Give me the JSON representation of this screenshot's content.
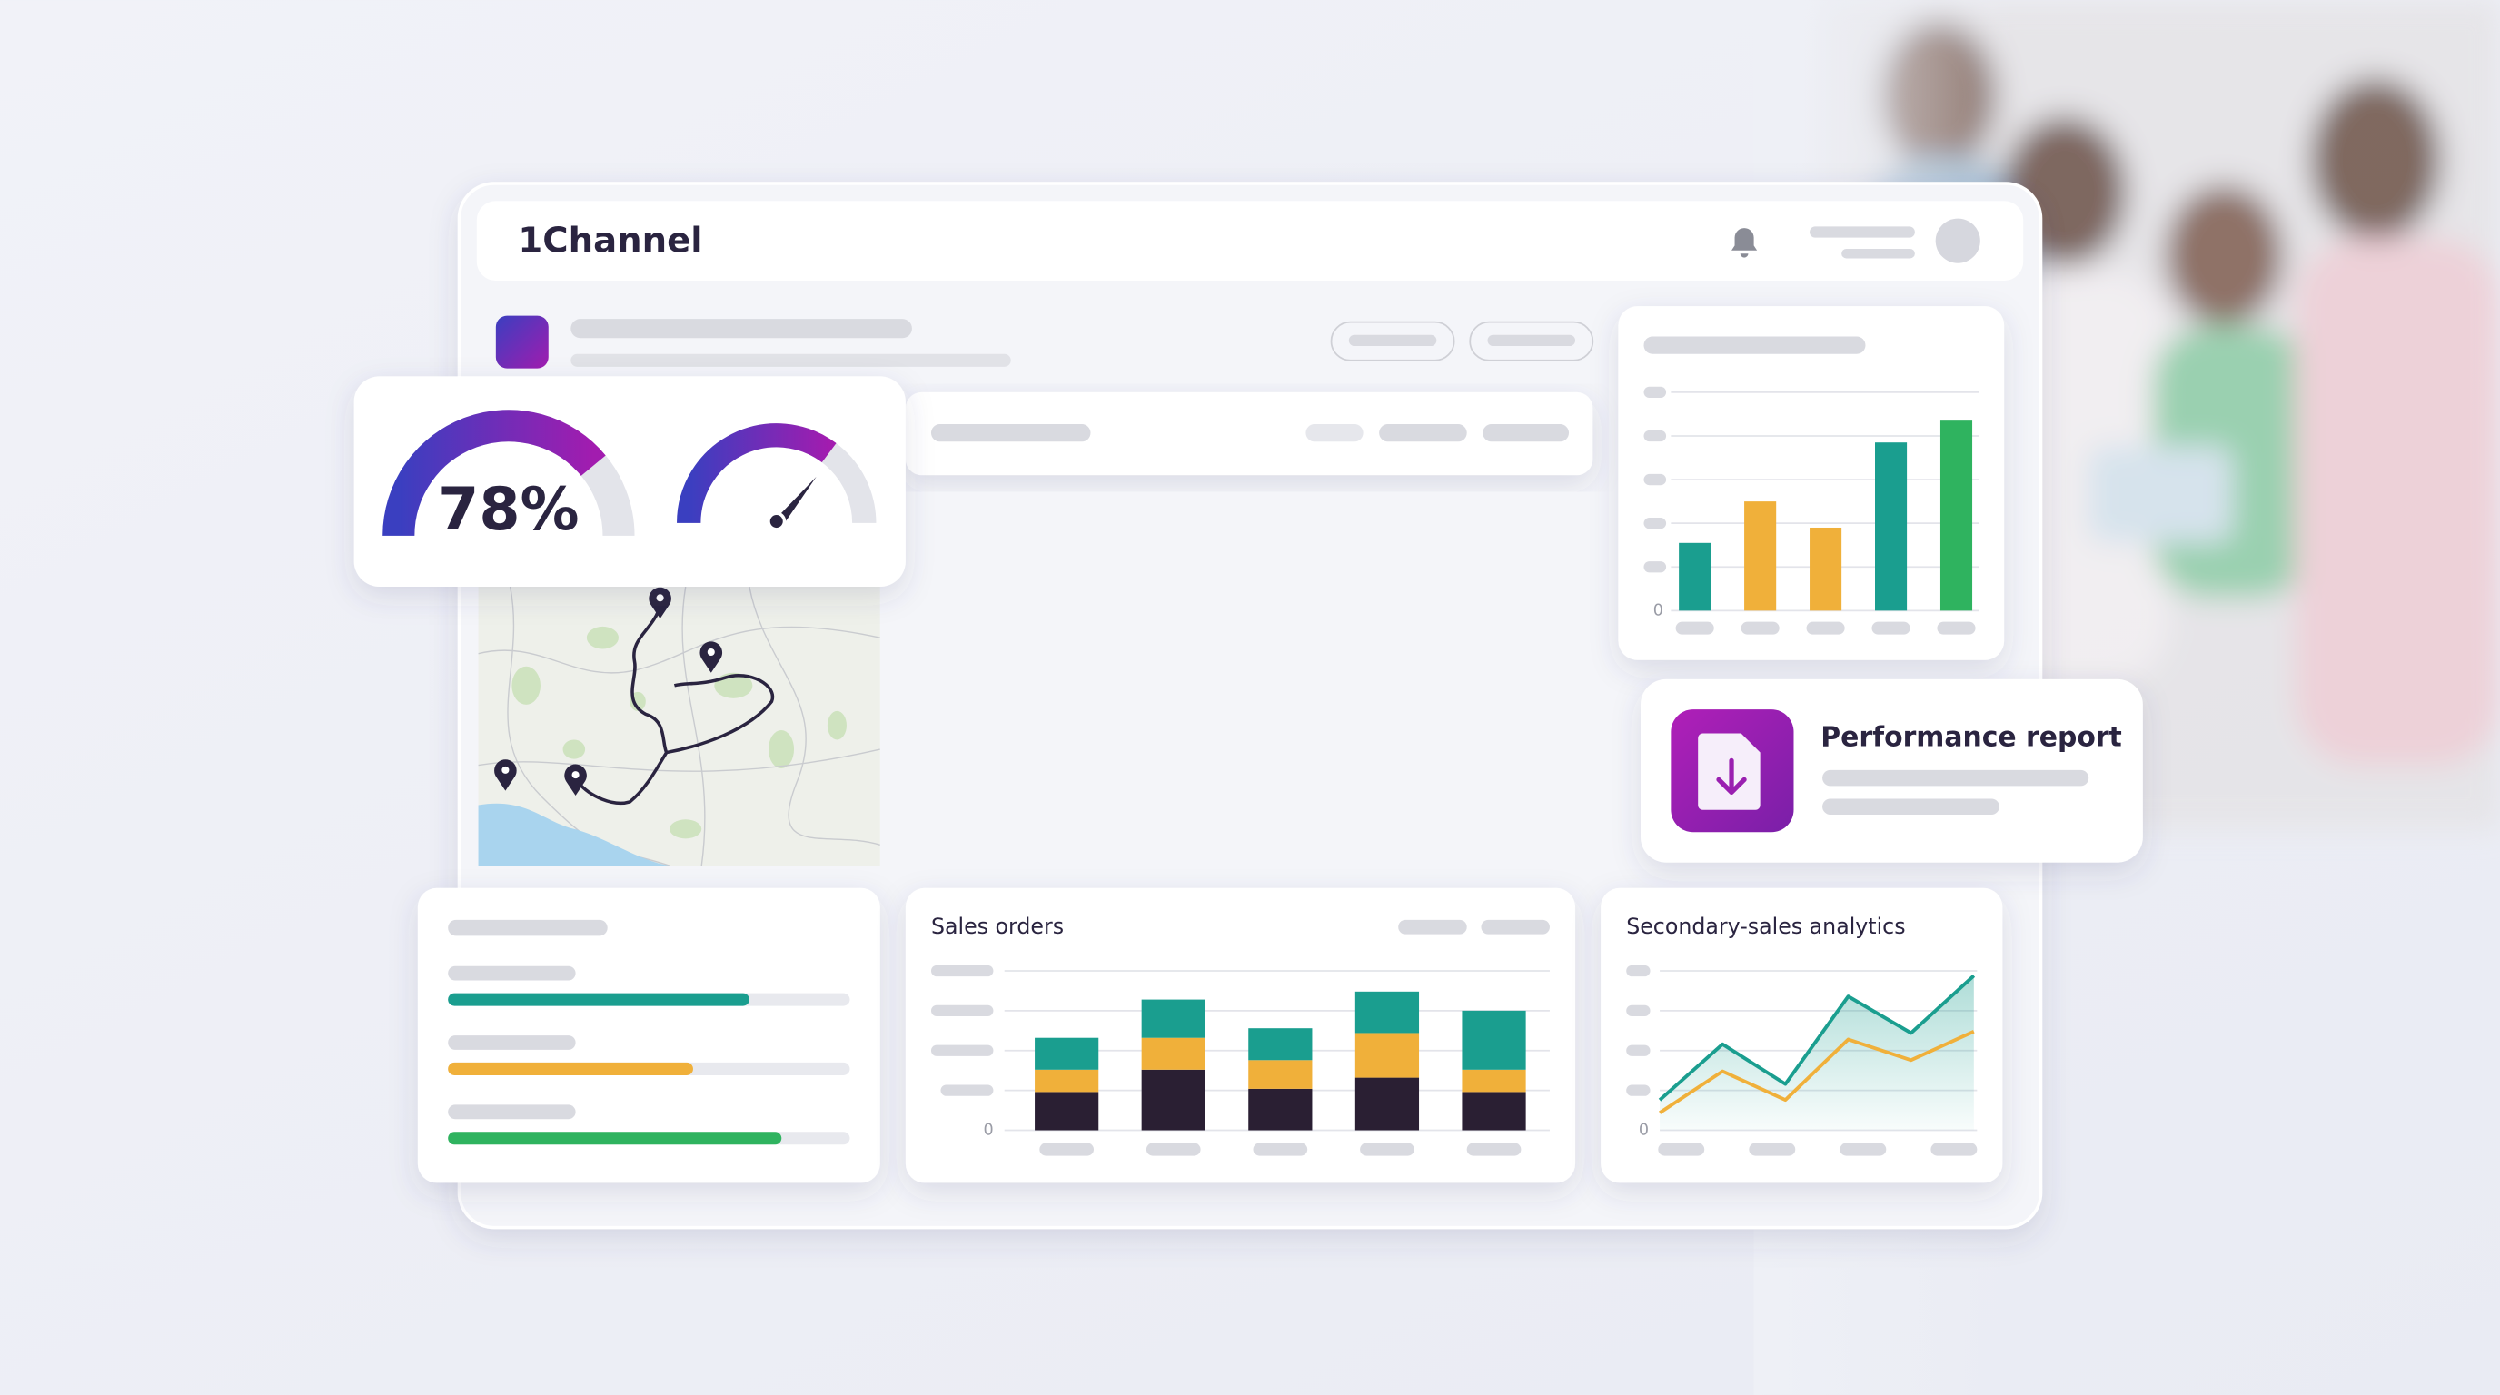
{
  "header": {
    "brand": "1Channel"
  },
  "report_card": {
    "title": "Performance report"
  },
  "chart_data": [
    {
      "type": "gauge",
      "values": [
        78
      ],
      "value_labels": [
        "78%"
      ],
      "ylim": [
        0,
        100
      ],
      "color": "#a21caf"
    },
    {
      "type": "bar",
      "values": [
        31,
        50,
        38,
        77,
        87
      ],
      "colors": [
        "#1a9e8f",
        "#f0b03a",
        "#f0b03a",
        "#1a9e8f",
        "#2fb35f"
      ],
      "ylim": [
        0,
        100
      ],
      "yticks": [
        0
      ]
    },
    {
      "type": "stacked-bar",
      "title": "Sales orders",
      "ylim": [
        0,
        100
      ],
      "yticks": [
        0
      ],
      "series": [
        {
          "color": "#2a1f33",
          "values": [
            24,
            38,
            26,
            33,
            24
          ]
        },
        {
          "color": "#f0b03a",
          "values": [
            14,
            20,
            18,
            28,
            14
          ]
        },
        {
          "color": "#1a9e8f",
          "values": [
            20,
            24,
            20,
            26,
            37
          ]
        }
      ]
    },
    {
      "type": "line",
      "title": "Secondary-sales analytics",
      "ylim": [
        0,
        100
      ],
      "yticks": [
        0
      ],
      "series": [
        {
          "color": "#1a9e8f",
          "values": [
            19,
            54,
            29,
            84,
            61,
            97
          ]
        },
        {
          "color": "#f0b03a",
          "values": [
            11,
            37,
            19,
            57,
            44,
            62
          ]
        }
      ]
    },
    {
      "type": "progress",
      "xlim": [
        0,
        100
      ],
      "values": [
        75,
        61,
        83
      ],
      "colors": [
        "#1a9e8f",
        "#f0b03a",
        "#2fb35f"
      ]
    }
  ]
}
